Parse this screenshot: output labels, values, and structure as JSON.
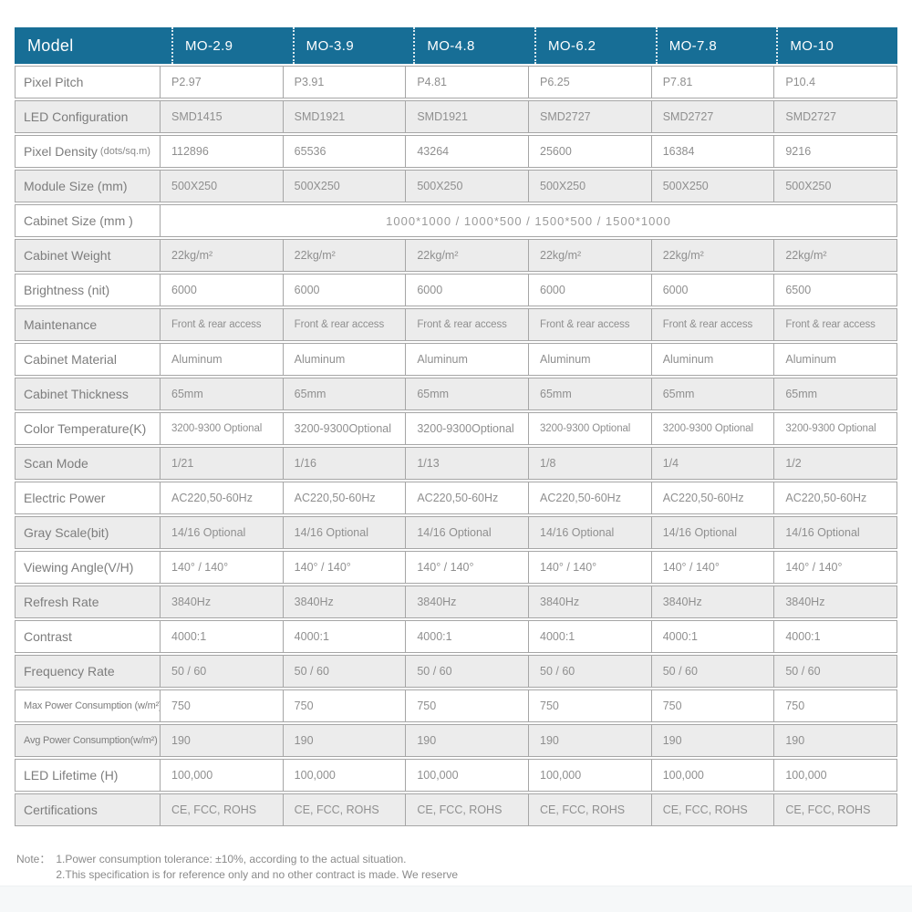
{
  "header": {
    "label": "Model",
    "models": [
      "MO-2.9",
      "MO-3.9",
      "MO-4.8",
      "MO-6.2",
      "MO-7.8",
      "MO-10"
    ]
  },
  "rows": [
    {
      "label": "Pixel Pitch",
      "values": [
        "P2.97",
        "P3.91",
        "P4.81",
        "P6.25",
        "P7.81",
        "P10.4"
      ]
    },
    {
      "label": "LED Configuration",
      "values": [
        "SMD1415",
        "SMD1921",
        "SMD1921",
        "SMD2727",
        "SMD2727",
        "SMD2727"
      ]
    },
    {
      "label": "Pixel Density",
      "label_suffix": "(dots/sq.m)",
      "values": [
        "112896",
        "65536",
        "43264",
        "25600",
        "16384",
        "9216"
      ]
    },
    {
      "label": "Module Size (mm)",
      "values": [
        "500X250",
        "500X250",
        "500X250",
        "500X250",
        "500X250",
        "500X250"
      ]
    },
    {
      "label": "Cabinet Size (mm )",
      "span": "1000*1000 / 1000*500 / 1500*500 / 1500*1000"
    },
    {
      "label": "Cabinet Weight",
      "values": [
        "22kg/m²",
        "22kg/m²",
        "22kg/m²",
        "22kg/m²",
        "22kg/m²",
        "22kg/m²"
      ]
    },
    {
      "label": "Brightness (nit)",
      "values": [
        "6000",
        "6000",
        "6000",
        "6000",
        "6000",
        "6500"
      ]
    },
    {
      "label": "Maintenance",
      "values": [
        "Front & rear access",
        "Front & rear access",
        "Front & rear access",
        "Front & rear access",
        "Front & rear access",
        "Front & rear access"
      ]
    },
    {
      "label": "Cabinet Material",
      "values": [
        "Aluminum",
        "Aluminum",
        "Aluminum",
        "Aluminum",
        "Aluminum",
        "Aluminum"
      ]
    },
    {
      "label": "Cabinet Thickness",
      "values": [
        "65mm",
        "65mm",
        "65mm",
        "65mm",
        "65mm",
        "65mm"
      ]
    },
    {
      "label": "Color Temperature(K)",
      "values": [
        "3200-9300 Optional",
        "3200-9300Optional",
        "3200-9300Optional",
        "3200-9300 Optional",
        "3200-9300 Optional",
        "3200-9300 Optional"
      ]
    },
    {
      "label": "Scan Mode",
      "values": [
        "1/21",
        "1/16",
        "1/13",
        "1/8",
        "1/4",
        "1/2"
      ]
    },
    {
      "label": "Electric Power",
      "values": [
        "AC220,50-60Hz",
        "AC220,50-60Hz",
        "AC220,50-60Hz",
        "AC220,50-60Hz",
        "AC220,50-60Hz",
        "AC220,50-60Hz"
      ]
    },
    {
      "label": "Gray Scale(bit)",
      "values": [
        "14/16 Optional",
        "14/16 Optional",
        "14/16 Optional",
        "14/16 Optional",
        "14/16 Optional",
        "14/16 Optional"
      ]
    },
    {
      "label": "Viewing Angle(V/H)",
      "values": [
        "140° / 140°",
        "140° / 140°",
        "140° / 140°",
        "140° / 140°",
        "140° / 140°",
        "140° / 140°"
      ]
    },
    {
      "label": "Refresh Rate",
      "values": [
        "3840Hz",
        "3840Hz",
        "3840Hz",
        "3840Hz",
        "3840Hz",
        "3840Hz"
      ]
    },
    {
      "label": "Contrast",
      "values": [
        "4000:1",
        "4000:1",
        "4000:1",
        "4000:1",
        "4000:1",
        "4000:1"
      ]
    },
    {
      "label": "Frequency Rate",
      "values": [
        "50 / 60",
        "50 / 60",
        "50 / 60",
        "50 / 60",
        "50 / 60",
        "50 / 60"
      ]
    },
    {
      "label": "Max Power Consumption (w/m²)",
      "values": [
        "750",
        "750",
        "750",
        "750",
        "750",
        "750"
      ]
    },
    {
      "label": "Avg Power Consumption(w/m²)",
      "values": [
        "190",
        "190",
        "190",
        "190",
        "190",
        "190"
      ]
    },
    {
      "label": "LED Lifetime (H)",
      "values": [
        "100,000",
        "100,000",
        "100,000",
        "100,000",
        "100,000",
        "100,000"
      ]
    },
    {
      "label": "Certifications",
      "values": [
        "CE, FCC, ROHS",
        "CE, FCC, ROHS",
        "CE, FCC, ROHS",
        "CE, FCC, ROHS",
        "CE, FCC, ROHS",
        "CE, FCC, ROHS"
      ]
    }
  ],
  "note": {
    "prefix": "Note：",
    "line1": "1.Power consumption tolerance: ±10%, according to the actual situation.",
    "line2": "2.This specification is for reference only and no other contract is made. We reserve"
  },
  "colors": {
    "header_bg": "#176E96",
    "alt_row_bg": "#ececec",
    "border": "#a6a6a6"
  }
}
